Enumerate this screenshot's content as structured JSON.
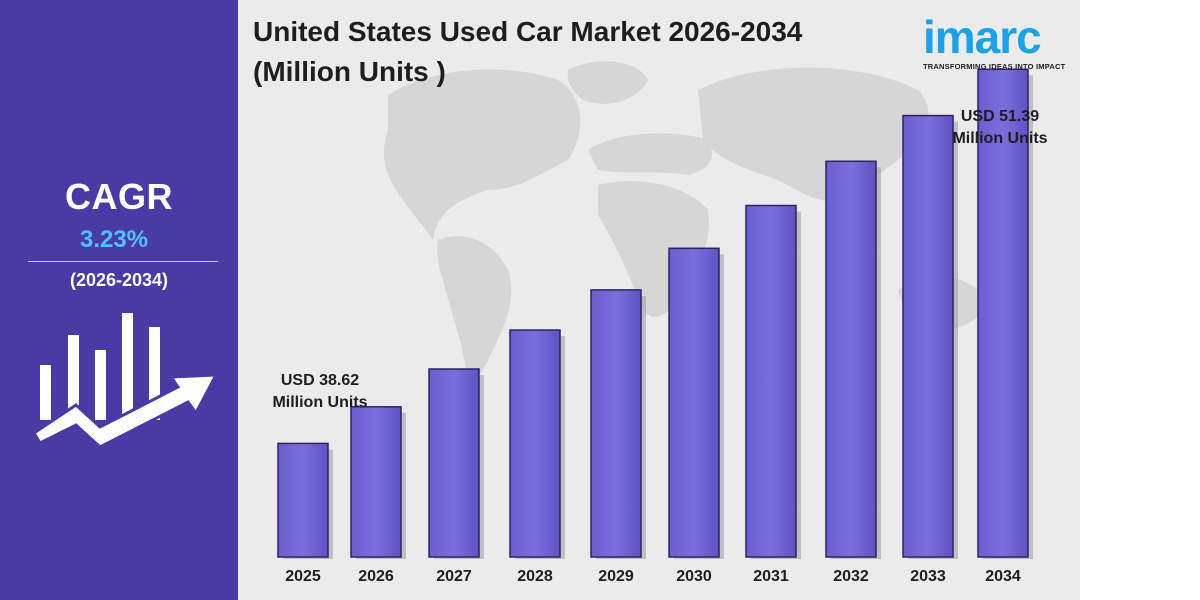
{
  "title": "United States Used Car Market 2026-2034",
  "subtitle": "(Million Units )",
  "logo": {
    "name": "imarc",
    "tagline": "TRANSFORMING IDEAS INTO IMPACT"
  },
  "cagr": {
    "label": "CAGR",
    "value": "3.23%",
    "period": "(2026-2034)"
  },
  "annotations": {
    "first_value": "USD 38.62",
    "first_unit": "Million Units",
    "last_value": "USD 51.39",
    "last_unit": "Million Units"
  },
  "colors": {
    "left_panel": "#4a3aa6",
    "bar": "#7b6fdc",
    "cagr_value": "#4fc3f7",
    "logo": "#1aa3e8"
  },
  "chart_data": {
    "type": "bar",
    "title": "United States Used Car Market 2026-2034",
    "subtitle": "(Million Units )",
    "categories": [
      "2025",
      "2026",
      "2027",
      "2028",
      "2029",
      "2030",
      "2031",
      "2032",
      "2033",
      "2034"
    ],
    "values": [
      38.62,
      39.87,
      41.16,
      42.49,
      43.86,
      45.28,
      46.74,
      48.25,
      49.81,
      51.39
    ],
    "xlabel": "",
    "ylabel": "",
    "grid": false
  }
}
